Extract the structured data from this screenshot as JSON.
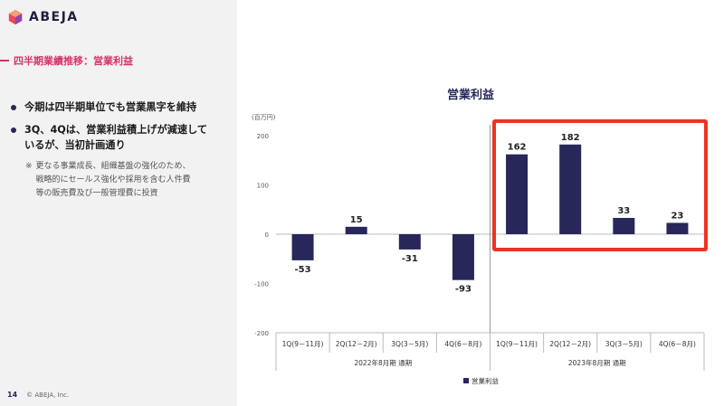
{
  "logo": {
    "text": "ABEJA"
  },
  "section_title": "四半期業績推移：営業利益",
  "bullets": [
    {
      "lines": [
        "今期は四半期単位でも営業黒字を維持"
      ]
    },
    {
      "lines": [
        "3Q、4Qは、営業利益積上げが減速して",
        "いるが、当初計画通り"
      ]
    }
  ],
  "note": {
    "mark": "※",
    "lines": [
      "更なる事業成長、組織基盤の強化のため、",
      "戦略的にセールス強化や採用を含む人件費",
      "等の販売費及び一般管理費に投資"
    ]
  },
  "footer": {
    "page_number": "14",
    "copyright": "© ABEJA, Inc."
  },
  "colors": {
    "bar": "#27275a",
    "highlight": "#ee3322",
    "accent": "#d6336c"
  },
  "chart_data": {
    "type": "bar",
    "title": "営業利益",
    "ylabel": "(百万円)",
    "ylim": [
      -200,
      200
    ],
    "yticks": [
      -200,
      -100,
      0,
      100,
      200
    ],
    "categories": [
      "1Q(9－11月)",
      "2Q(12－2月)",
      "3Q(3－5月)",
      "4Q(6－8月)",
      "1Q(9－11月)",
      "2Q(12－2月)",
      "3Q(3－5月)",
      "4Q(6－8月)"
    ],
    "groups": [
      {
        "label": "2022年8月期 通期"
      },
      {
        "label": "2023年8月期 通期"
      }
    ],
    "series": [
      {
        "name": "営業利益",
        "values": [
          -53,
          15,
          -31,
          -93,
          162,
          182,
          33,
          23
        ]
      }
    ],
    "legend": "bottom",
    "grid": false
  }
}
